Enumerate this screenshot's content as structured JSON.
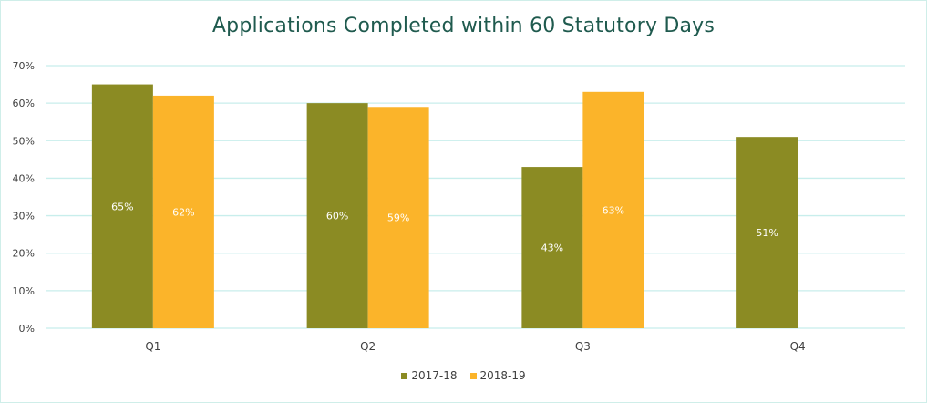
{
  "chart_data": {
    "type": "bar",
    "title": "Applications Completed within 60 Statutory Days",
    "xlabel": "",
    "ylabel": "",
    "categories": [
      "Q1",
      "Q2",
      "Q3",
      "Q4"
    ],
    "series": [
      {
        "name": "2017-18",
        "color": "#8b8b23",
        "values": [
          65,
          60,
          43,
          51
        ],
        "labels": [
          "65%",
          "60%",
          "43%",
          "51%"
        ]
      },
      {
        "name": "2018-19",
        "color": "#fbb42a",
        "values": [
          62,
          59,
          63,
          null
        ],
        "labels": [
          "62%",
          "59%",
          "63%",
          ""
        ]
      }
    ],
    "ylim": [
      0,
      70
    ],
    "yticks": [
      "0%",
      "10%",
      "20%",
      "30%",
      "40%",
      "50%",
      "60%",
      "70%"
    ],
    "grid": true,
    "legend_position": "bottom"
  },
  "colors": {
    "title": "#1f5a4e",
    "grid": "#c8eeec",
    "border": "#cfeee9"
  }
}
